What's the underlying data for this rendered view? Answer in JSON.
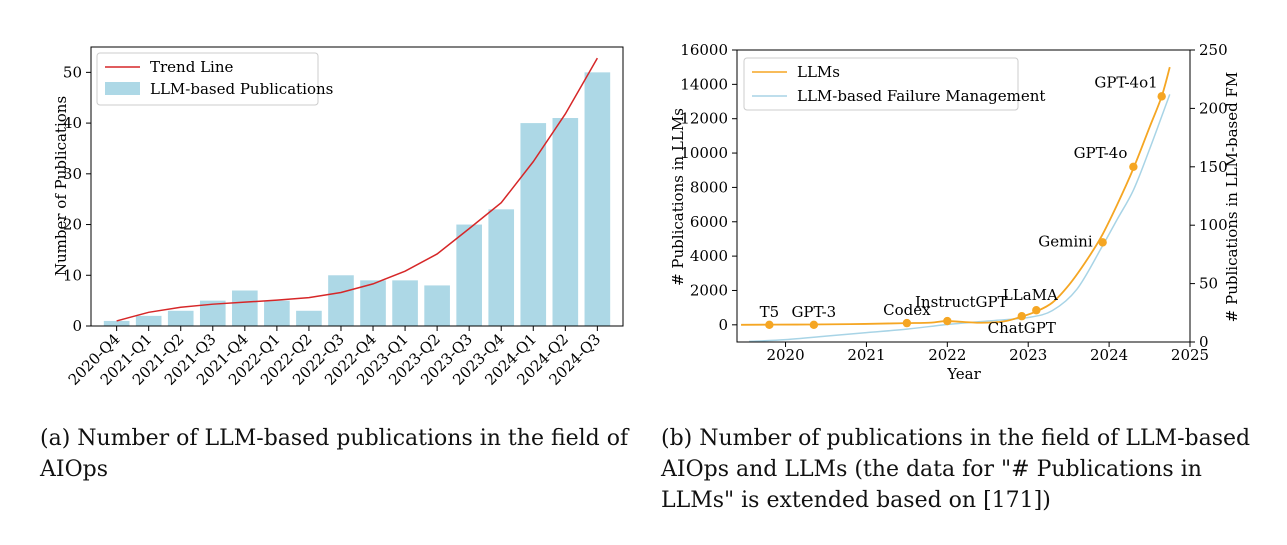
{
  "chart_data": [
    {
      "type": "bar",
      "caption": "(a)  Number of LLM-based publications in the field of AIOps",
      "categories": [
        "2020-Q4",
        "2021-Q1",
        "2021-Q2",
        "2021-Q3",
        "2021-Q4",
        "2022-Q1",
        "2022-Q2",
        "2022-Q3",
        "2022-Q4",
        "2023-Q1",
        "2023-Q2",
        "2023-Q3",
        "2023-Q4",
        "2024-Q1",
        "2024-Q2",
        "2024-Q3"
      ],
      "series": [
        {
          "name": "LLM-based Publications",
          "color": "#add8e6",
          "values": [
            1,
            2,
            3,
            5,
            7,
            5,
            3,
            10,
            9,
            9,
            8,
            20,
            23,
            40,
            41,
            50
          ]
        },
        {
          "name": "Trend Line",
          "type": "line",
          "color": "#d62728",
          "values": [
            1,
            2.7,
            3.7,
            4.3,
            4.7,
            5.1,
            5.6,
            6.6,
            8.3,
            10.8,
            14.2,
            19.2,
            24.3,
            32.4,
            41.8,
            52.8
          ]
        }
      ],
      "ylabel": "Number of Publications",
      "xlabel": "",
      "ylim": [
        0,
        55
      ],
      "yticks": [
        0,
        10,
        20,
        30,
        40,
        50
      ],
      "legend": {
        "position": "top-left",
        "entries": [
          "Trend Line",
          "LLM-based Publications"
        ]
      }
    },
    {
      "type": "line",
      "caption": "(b)  Number of publications in the field of LLM-based AIOps and LLMs (the data for \"# Publications in LLMs\" is extended based on [171])",
      "xlabel": "Year",
      "ylabel": "# Publications in LLMs",
      "y2label": "# Publications in LLM-based FM",
      "xlim": [
        2019.4,
        2025.0
      ],
      "xticks": [
        2020,
        2021,
        2022,
        2023,
        2024,
        2025
      ],
      "ylim": [
        -1000,
        16000
      ],
      "yticks": [
        0,
        2000,
        4000,
        6000,
        8000,
        10000,
        12000,
        14000,
        16000
      ],
      "y2lim": [
        0,
        250
      ],
      "y2ticks": [
        0,
        50,
        100,
        150,
        200,
        250
      ],
      "series": [
        {
          "name": "LLMs",
          "axis": "left",
          "color": "#f5a623",
          "x": [
            2019.45,
            2019.8,
            2020.3,
            2020.8,
            2021.3,
            2021.5,
            2021.8,
            2022.0,
            2022.4,
            2022.7,
            2022.9,
            2023.1,
            2023.3,
            2023.5,
            2023.7,
            2023.9,
            2024.1,
            2024.3,
            2024.5,
            2024.65,
            2024.75
          ],
          "y": [
            0,
            10,
            20,
            40,
            80,
            100,
            130,
            220,
            120,
            200,
            450,
            780,
            1300,
            2300,
            3600,
            5100,
            7000,
            9100,
            11500,
            13300,
            15000
          ]
        },
        {
          "name": "LLM-based Failure Management",
          "axis": "right",
          "color": "#a8d4e6",
          "x": [
            2019.55,
            2020.0,
            2020.5,
            2021.0,
            2021.5,
            2022.0,
            2022.5,
            2023.0,
            2023.3,
            2023.6,
            2023.9,
            2024.1,
            2024.3,
            2024.5,
            2024.75
          ],
          "y": [
            0.5,
            2,
            5,
            8,
            11,
            15,
            18,
            21,
            27,
            45,
            80,
            105,
            130,
            165,
            212
          ]
        }
      ],
      "milestones": [
        {
          "label": "T5",
          "x": 2019.8,
          "y": 0
        },
        {
          "label": "GPT-3",
          "x": 2020.35,
          "y": 0
        },
        {
          "label": "Codex",
          "x": 2021.5,
          "y": 100
        },
        {
          "label": "InstructGPT",
          "x": 2022.0,
          "y": 220
        },
        {
          "label": "ChatGPT",
          "x": 2022.92,
          "y": 500
        },
        {
          "label": "LLaMA",
          "x": 2023.1,
          "y": 850
        },
        {
          "label": "Gemini",
          "x": 2023.92,
          "y": 4800
        },
        {
          "label": "GPT-4o",
          "x": 2024.3,
          "y": 9200
        },
        {
          "label": "GPT-4o1",
          "x": 2024.65,
          "y": 13300
        }
      ],
      "legend": {
        "position": "top-left",
        "entries": [
          "LLMs",
          "LLM-based Failure Management"
        ]
      }
    }
  ]
}
